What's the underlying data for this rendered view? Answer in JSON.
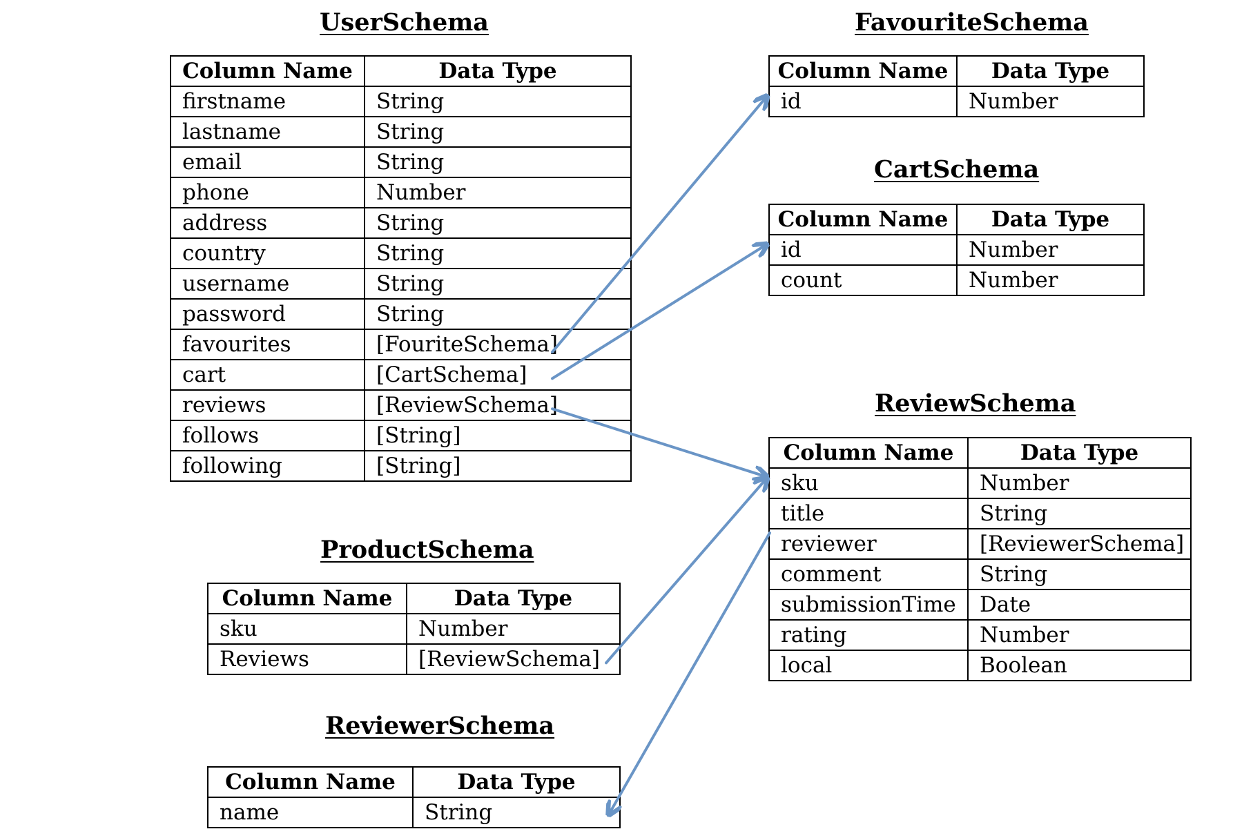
{
  "header": {
    "column_name": "Column Name",
    "data_type": "Data Type"
  },
  "arrow_color": "#6a95c6",
  "schemas": {
    "user": {
      "title": "UserSchema",
      "rows": [
        {
          "name": "firstname",
          "type": "String"
        },
        {
          "name": "lastname",
          "type": "String"
        },
        {
          "name": "email",
          "type": "String"
        },
        {
          "name": "phone",
          "type": "Number"
        },
        {
          "name": "address",
          "type": "String"
        },
        {
          "name": "country",
          "type": "String"
        },
        {
          "name": "username",
          "type": "String"
        },
        {
          "name": "password",
          "type": "String"
        },
        {
          "name": "favourites",
          "type": "[FouriteSchema]"
        },
        {
          "name": "cart",
          "type": "[CartSchema]"
        },
        {
          "name": "reviews",
          "type": "[ReviewSchema]"
        },
        {
          "name": "follows",
          "type": "[String]"
        },
        {
          "name": "following",
          "type": "[String]"
        }
      ]
    },
    "favourite": {
      "title": "FavouriteSchema",
      "rows": [
        {
          "name": "id",
          "type": "Number"
        }
      ]
    },
    "cart": {
      "title": "CartSchema",
      "rows": [
        {
          "name": "id",
          "type": "Number"
        },
        {
          "name": "count",
          "type": "Number"
        }
      ]
    },
    "review": {
      "title": "ReviewSchema",
      "rows": [
        {
          "name": "sku",
          "type": "Number"
        },
        {
          "name": "title",
          "type": "String"
        },
        {
          "name": "reviewer",
          "type": "[ReviewerSchema]"
        },
        {
          "name": "comment",
          "type": "String"
        },
        {
          "name": "submissionTime",
          "type": "Date"
        },
        {
          "name": "rating",
          "type": "Number"
        },
        {
          "name": "local",
          "type": "Boolean"
        }
      ]
    },
    "product": {
      "title": "ProductSchema",
      "rows": [
        {
          "name": "sku",
          "type": "Number"
        },
        {
          "name": "Reviews",
          "type": "[ReviewSchema]"
        }
      ]
    },
    "reviewer": {
      "title": "ReviewerSchema",
      "rows": [
        {
          "name": "name",
          "type": "String"
        }
      ]
    }
  },
  "relations": [
    {
      "from": "user.favourites",
      "to": "favourite"
    },
    {
      "from": "user.cart",
      "to": "cart"
    },
    {
      "from": "user.reviews",
      "to": "review"
    },
    {
      "from": "product.Reviews",
      "to": "review"
    },
    {
      "from": "review.reviewer",
      "to": "reviewer"
    }
  ]
}
